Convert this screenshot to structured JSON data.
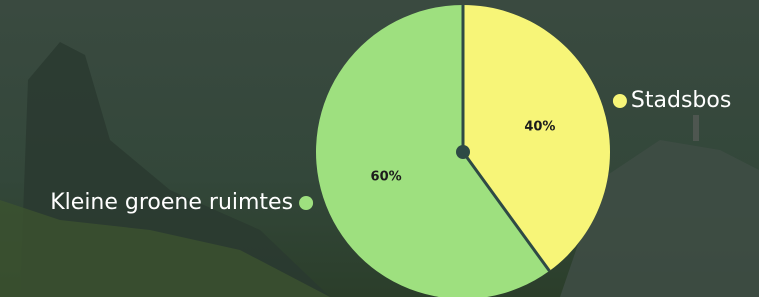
{
  "chart_data": {
    "type": "pie",
    "categories": [
      "Stadsbos",
      "Kleine groene ruimtes"
    ],
    "values": [
      40,
      60
    ],
    "value_labels": [
      "40%",
      "60%"
    ],
    "colors": [
      "#f7f578",
      "#9ee07f"
    ]
  }
}
